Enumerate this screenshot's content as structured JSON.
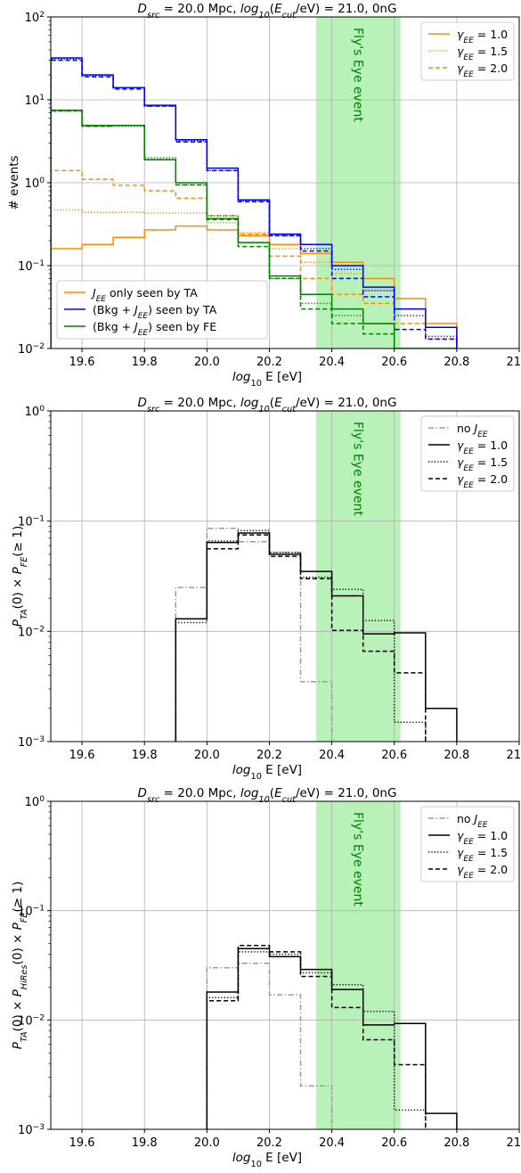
{
  "chart_data": [
    {
      "type": "step",
      "title": "D_src = 20.0 Mpc, log10(E_cut/eV) = 21.0, 0nG",
      "xlabel": "log10 E [eV]",
      "ylabel": "# events",
      "xlim": [
        19.5,
        21.0
      ],
      "ylim": [
        0.01,
        100
      ],
      "log_y": true,
      "grid": true,
      "xticks": [
        "19.6",
        "19.8",
        "20.0",
        "20.2",
        "20.4",
        "20.6",
        "20.8",
        "21.0"
      ],
      "yticks": [
        {
          "v": 0.01,
          "m": "10",
          "e": "−2"
        },
        {
          "v": 0.1,
          "m": "10",
          "e": "−1"
        },
        {
          "v": 1,
          "m": "10",
          "e": "0"
        },
        {
          "v": 10,
          "m": "10",
          "e": "1"
        },
        {
          "v": 100,
          "m": "10",
          "e": "2"
        }
      ],
      "band": {
        "x0": 20.35,
        "x1": 20.62,
        "color": "#b8f2b8",
        "label": "Fly's Eye event"
      },
      "bin_edges": [
        19.5,
        19.6,
        19.7,
        19.8,
        19.9,
        20.0,
        20.1,
        20.2,
        20.3,
        20.4,
        20.5,
        20.6,
        20.7,
        20.8
      ],
      "series": [
        {
          "color": "#ff8c00",
          "dash": "solid",
          "values": [
            0.16,
            0.18,
            0.22,
            0.27,
            0.3,
            0.27,
            0.23,
            0.18,
            0.14,
            0.11,
            0.07,
            0.04,
            0.02
          ]
        },
        {
          "color": "#ff8c00",
          "dash": "dot",
          "values": [
            0.47,
            0.44,
            0.44,
            0.43,
            0.43,
            0.33,
            0.25,
            0.16,
            0.11,
            0.08,
            0.05,
            0.03,
            0.013
          ]
        },
        {
          "color": "#ff8c00",
          "dash": "dash",
          "values": [
            1.4,
            1.1,
            0.93,
            0.8,
            0.65,
            0.4,
            0.24,
            0.13,
            0.07,
            0.045,
            0.035,
            0.02,
            0.013
          ]
        },
        {
          "color": "#0000ff",
          "dash": "solid",
          "values": [
            32,
            20,
            14,
            8.6,
            3.3,
            1.5,
            0.62,
            0.24,
            0.18,
            0.1,
            0.055,
            0.03,
            0.018
          ]
        },
        {
          "color": "#0000ff",
          "dash": "dot",
          "values": [
            31,
            19.5,
            14,
            8.4,
            3.2,
            1.4,
            0.6,
            0.23,
            0.16,
            0.09,
            0.05,
            0.025,
            0.014
          ]
        },
        {
          "color": "#0000ff",
          "dash": "dash",
          "values": [
            30,
            19,
            13.5,
            8.4,
            3.1,
            1.4,
            0.59,
            0.23,
            0.15,
            0.07,
            0.042,
            0.017,
            0.013
          ]
        },
        {
          "color": "#008000",
          "dash": "solid",
          "values": [
            7.5,
            4.9,
            4.9,
            1.9,
            1.0,
            0.37,
            0.19,
            0.075,
            0.045,
            0.03,
            0.02,
            0.01,
            0.01
          ]
        },
        {
          "color": "#008000",
          "dash": "dot",
          "values": [
            7.3,
            4.8,
            4.8,
            2.0,
            0.95,
            0.4,
            0.19,
            0.07,
            0.035,
            0.025,
            0.02,
            0.01,
            0.01
          ]
        },
        {
          "color": "#008000",
          "dash": "dash",
          "values": [
            7.4,
            4.8,
            4.9,
            1.9,
            0.94,
            0.36,
            0.17,
            0.07,
            0.03,
            0.02,
            0.015,
            0.01,
            0.01
          ]
        }
      ],
      "legends": [
        {
          "pos": "top-right",
          "entries": [
            {
              "color": "#ff8c00",
              "dash": "solid",
              "label": "γ_EE = 1.0"
            },
            {
              "color": "#ff8c00",
              "dash": "dot",
              "label": "γ_EE = 1.5"
            },
            {
              "color": "#ff8c00",
              "dash": "dash",
              "label": "γ_EE = 2.0"
            }
          ]
        },
        {
          "pos": "bottom-left",
          "entries": [
            {
              "color": "#ff8c00",
              "dash": "solid",
              "label": "J_EE only seen by TA"
            },
            {
              "color": "#0000ff",
              "dash": "solid",
              "label": "(Bkg + J_EE) seen by TA"
            },
            {
              "color": "#008000",
              "dash": "solid",
              "label": "(Bkg + J_EE) seen by FE"
            }
          ]
        }
      ]
    },
    {
      "type": "step",
      "title": "D_src = 20.0 Mpc, log10(E_cut/eV) = 21.0, 0nG",
      "xlabel": "log10 E [eV]",
      "ylabel": "P_TA(0) × P_FE(≥ 1)",
      "xlim": [
        19.5,
        21.0
      ],
      "ylim": [
        0.001,
        1
      ],
      "log_y": true,
      "grid": true,
      "xticks": [
        "19.6",
        "19.8",
        "20.0",
        "20.2",
        "20.4",
        "20.6",
        "20.8",
        "21.0"
      ],
      "yticks": [
        {
          "v": 0.001,
          "m": "10",
          "e": "−3"
        },
        {
          "v": 0.01,
          "m": "10",
          "e": "−2"
        },
        {
          "v": 0.1,
          "m": "10",
          "e": "−1"
        },
        {
          "v": 1,
          "m": "10",
          "e": "0"
        }
      ],
      "band": {
        "x0": 20.35,
        "x1": 20.62,
        "color": "#b8f2b8",
        "label": "Fly's Eye event"
      },
      "bin_edges": [
        19.9,
        20.0,
        20.1,
        20.2,
        20.3,
        20.4,
        20.5,
        20.6,
        20.7,
        20.8
      ],
      "series": [
        {
          "color": "#999999",
          "dash": "dashdot",
          "values": [
            0.025,
            0.086,
            0.065,
            0.052,
            0.0035,
            null,
            null,
            null,
            null
          ]
        },
        {
          "color": "#000000",
          "dash": "solid",
          "values": [
            0.013,
            0.064,
            0.078,
            0.05,
            0.035,
            0.021,
            0.0095,
            0.0097,
            0.002
          ]
        },
        {
          "color": "#000000",
          "dash": "dot",
          "values": [
            0.012,
            0.066,
            0.082,
            0.052,
            0.031,
            0.024,
            0.0125,
            0.0015,
            null
          ]
        },
        {
          "color": "#000000",
          "dash": "dash",
          "values": [
            0.013,
            0.056,
            0.075,
            0.048,
            0.03,
            0.0102,
            0.0066,
            0.0042,
            null
          ]
        }
      ],
      "legends": [
        {
          "pos": "top-right",
          "entries": [
            {
              "color": "#999999",
              "dash": "dashdot",
              "label": "no J_EE"
            },
            {
              "color": "#000000",
              "dash": "solid",
              "label": "γ_EE = 1.0"
            },
            {
              "color": "#000000",
              "dash": "dot",
              "label": "γ_EE = 1.5"
            },
            {
              "color": "#000000",
              "dash": "dash",
              "label": "γ_EE = 2.0"
            }
          ]
        }
      ]
    },
    {
      "type": "step",
      "title": "D_src = 20.0 Mpc, log10(E_cut/eV) = 21.0, 0nG",
      "xlabel": "log10 E [eV]",
      "ylabel": "P_TA(0) × P_HiRes(0) × P_FE(≥ 1)",
      "xlim": [
        19.5,
        21.0
      ],
      "ylim": [
        0.001,
        1
      ],
      "log_y": true,
      "grid": true,
      "xticks": [
        "19.6",
        "19.8",
        "20.0",
        "20.2",
        "20.4",
        "20.6",
        "20.8",
        "21.0"
      ],
      "yticks": [
        {
          "v": 0.001,
          "m": "10",
          "e": "−3"
        },
        {
          "v": 0.01,
          "m": "10",
          "e": "−2"
        },
        {
          "v": 0.1,
          "m": "10",
          "e": "−1"
        },
        {
          "v": 1,
          "m": "10",
          "e": "0"
        }
      ],
      "band": {
        "x0": 20.35,
        "x1": 20.62,
        "color": "#b8f2b8",
        "label": "Fly's Eye event"
      },
      "bin_edges": [
        20.0,
        20.1,
        20.2,
        20.3,
        20.4,
        20.5,
        20.6,
        20.7,
        20.8
      ],
      "series": [
        {
          "color": "#999999",
          "dash": "dashdot",
          "values": [
            0.03,
            0.033,
            0.017,
            0.0025,
            null,
            null,
            null,
            null
          ]
        },
        {
          "color": "#000000",
          "dash": "solid",
          "values": [
            0.018,
            0.045,
            0.038,
            0.029,
            0.019,
            0.009,
            0.0093,
            0.0014
          ]
        },
        {
          "color": "#000000",
          "dash": "dot",
          "values": [
            0.016,
            0.042,
            0.04,
            0.027,
            0.021,
            0.012,
            0.0015,
            null
          ]
        },
        {
          "color": "#000000",
          "dash": "dash",
          "values": [
            0.015,
            0.048,
            0.042,
            0.025,
            0.013,
            0.0066,
            0.0039,
            null
          ]
        }
      ],
      "legends": [
        {
          "pos": "top-right",
          "entries": [
            {
              "color": "#999999",
              "dash": "dashdot",
              "label": "no J_EE"
            },
            {
              "color": "#000000",
              "dash": "solid",
              "label": "γ_EE = 1.0"
            },
            {
              "color": "#000000",
              "dash": "dot",
              "label": "γ_EE = 1.5"
            },
            {
              "color": "#000000",
              "dash": "dash",
              "label": "γ_EE = 2.0"
            }
          ]
        }
      ]
    }
  ]
}
